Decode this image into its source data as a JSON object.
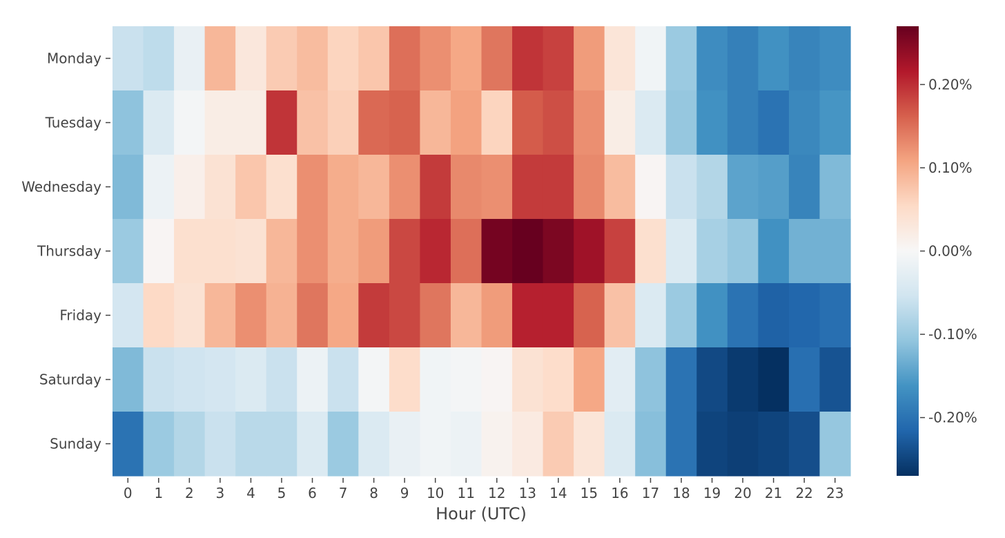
{
  "chart_data": {
    "type": "heatmap",
    "xlabel": "Hour (UTC)",
    "ylabel": "",
    "x_categories": [
      "0",
      "1",
      "2",
      "3",
      "4",
      "5",
      "6",
      "7",
      "8",
      "9",
      "10",
      "11",
      "12",
      "13",
      "14",
      "15",
      "16",
      "17",
      "18",
      "19",
      "20",
      "21",
      "22",
      "23"
    ],
    "y_categories": [
      "Monday",
      "Tuesday",
      "Wednesday",
      "Thursday",
      "Friday",
      "Saturday",
      "Sunday"
    ],
    "values": [
      [
        -0.06,
        -0.07,
        -0.02,
        0.09,
        0.03,
        0.07,
        0.085,
        0.06,
        0.075,
        0.15,
        0.125,
        0.105,
        0.145,
        0.195,
        0.185,
        0.115,
        0.035,
        -0.01,
        -0.1,
        -0.17,
        -0.185,
        -0.165,
        -0.18,
        -0.17
      ],
      [
        -0.11,
        -0.04,
        -0.005,
        0.02,
        0.02,
        0.195,
        0.08,
        0.065,
        0.155,
        0.16,
        0.09,
        0.11,
        0.06,
        0.165,
        0.175,
        0.125,
        0.02,
        -0.04,
        -0.105,
        -0.165,
        -0.185,
        -0.2,
        -0.175,
        -0.16
      ],
      [
        -0.12,
        -0.015,
        0.015,
        0.04,
        0.075,
        0.045,
        0.125,
        0.1,
        0.09,
        0.125,
        0.19,
        0.13,
        0.125,
        0.19,
        0.19,
        0.13,
        0.085,
        0.005,
        -0.06,
        -0.08,
        -0.145,
        -0.15,
        -0.18,
        -0.12
      ],
      [
        -0.1,
        0.005,
        0.045,
        0.045,
        0.04,
        0.09,
        0.125,
        0.1,
        0.115,
        0.18,
        0.205,
        0.15,
        0.26,
        0.28,
        0.255,
        0.23,
        0.185,
        0.045,
        -0.04,
        -0.09,
        -0.105,
        -0.165,
        -0.13,
        -0.13
      ],
      [
        -0.05,
        0.055,
        0.04,
        0.09,
        0.125,
        0.095,
        0.145,
        0.105,
        0.19,
        0.18,
        0.145,
        0.09,
        0.115,
        0.21,
        0.21,
        0.16,
        0.08,
        -0.04,
        -0.1,
        -0.165,
        -0.2,
        -0.22,
        -0.215,
        -0.205
      ],
      [
        -0.12,
        -0.06,
        -0.055,
        -0.05,
        -0.04,
        -0.06,
        -0.015,
        -0.06,
        -0.005,
        0.05,
        -0.01,
        -0.005,
        0.005,
        0.04,
        0.05,
        0.105,
        -0.03,
        -0.11,
        -0.2,
        -0.245,
        -0.26,
        -0.27,
        -0.205,
        -0.235
      ],
      [
        -0.2,
        -0.1,
        -0.08,
        -0.06,
        -0.075,
        -0.075,
        -0.04,
        -0.1,
        -0.04,
        -0.02,
        -0.01,
        -0.015,
        0.01,
        0.025,
        0.07,
        0.035,
        -0.04,
        -0.115,
        -0.2,
        -0.25,
        -0.255,
        -0.25,
        -0.24,
        -0.105
      ]
    ],
    "colorbar": {
      "colormap": "RdBu_r",
      "range": [
        -0.27,
        0.27
      ],
      "ticks": [
        0.2,
        0.1,
        0.0,
        -0.1,
        -0.2
      ],
      "tick_labels": [
        "0.20%",
        "0.10%",
        "0.00%",
        "-0.10%",
        "-0.20%"
      ]
    },
    "colors": {
      "stops": [
        "#053061",
        "#2166ac",
        "#4393c3",
        "#92c5de",
        "#d1e5f0",
        "#f7f7f7",
        "#fddbc7",
        "#f4a582",
        "#d6604d",
        "#b2182b",
        "#67001f"
      ]
    }
  }
}
